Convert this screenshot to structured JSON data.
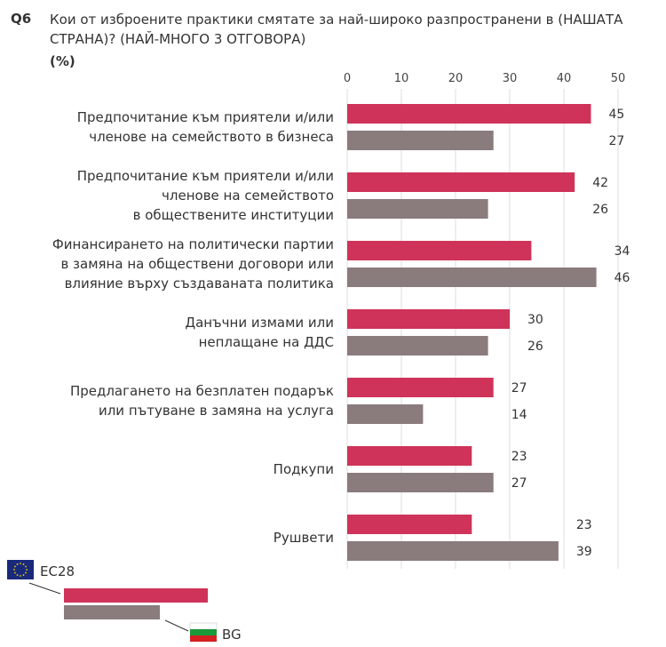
{
  "header": {
    "question_code": "Q6",
    "title": "Кои от изброените практики смятате за най-широко разпространени в (НАШАТА СТРАНА)? (НАЙ-МНОГО 3 ОТГОВОРА)",
    "unit": "(%)"
  },
  "chart_data": {
    "type": "bar",
    "orientation": "horizontal",
    "title": "Кои от изброените практики смятате за най-широко разпространени в (НАШАТА СТРАНА)? (НАЙ-МНОГО 3 ОТГОВОРА)",
    "xlabel": "",
    "ylabel": "(%)",
    "xlim": [
      0,
      50
    ],
    "ticks": [
      0,
      10,
      20,
      30,
      40,
      50
    ],
    "grid": true,
    "legend_position": "bottom-left",
    "categories": [
      [
        "Предпочитание към приятели и/или",
        "членове на семейството в бизнеса"
      ],
      [
        "Предпочитание към приятели и/или",
        "членове на семейството",
        "в обществените институции"
      ],
      [
        "Финансирането на политически партии",
        "в замяна на обществени договори или",
        "влияние върху създаваната политика"
      ],
      [
        "Данъчни измами или",
        "неплащане на ДДС"
      ],
      [
        "Предлагането на безплатен подарък",
        "или пътуване в замяна на услуга"
      ],
      [
        "Подкупи"
      ],
      [
        "Рушвети"
      ]
    ],
    "series": [
      {
        "name": "EC28",
        "color": "#cf3359",
        "values": [
          45,
          42,
          34,
          30,
          27,
          23,
          23
        ]
      },
      {
        "name": "BG",
        "color": "#8a7b7d",
        "values": [
          27,
          26,
          46,
          26,
          14,
          27,
          39
        ]
      }
    ]
  }
}
